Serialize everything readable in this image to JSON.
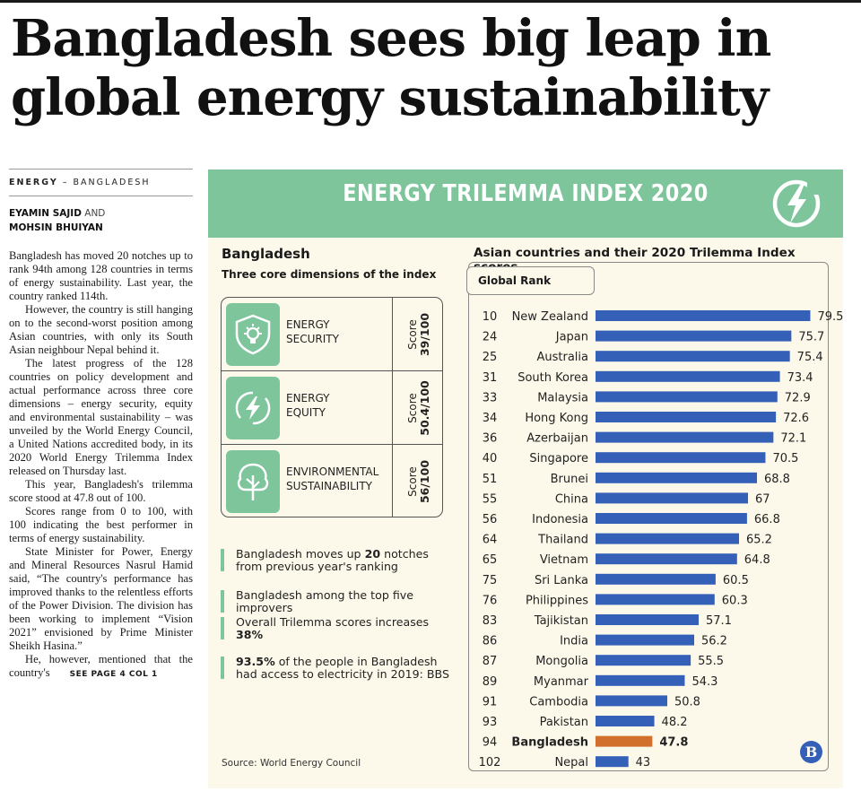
{
  "headline": {
    "line1": "Bangladesh sees big leap in",
    "line2": "global energy sustainability"
  },
  "article": {
    "kicker_section": "ENERGY",
    "kicker_sep": " – ",
    "kicker_region": "BANGLADESH",
    "author1": "EYAMIN SAJID",
    "and": " AND",
    "author2": "MOHSIN BHUIYAN",
    "paragraphs": [
      "Bangladesh has moved 20 notches up to rank 94th among 128 countries in terms of energy sustainability. Last year, the country ranked 114th.",
      "However, the country is still hanging on to the second-worst position among Asian countries, with only its South Asian neighbour Nepal behind it.",
      "The latest progress of the 128 countries on policy development and actual performance across three core dimensions – energy security, equity and environmental sustainability – was unveiled by the World Energy Council, a United Nations accredited body, in its 2020 World Energy Trilemma Index released on Thursday last.",
      "This year, Bangladesh's trilemma score stood at 47.8 out of 100.",
      "Scores range from 0 to 100, with 100 indicating the best performer in terms of energy sustainability.",
      "State Minister for Power, Energy and Mineral Resources Nasrul Hamid said, “The country's performance has improved thanks to the relentless efforts of the Power Division. The division has been working to implement “Vision 2021” envisioned by Prime Minister Sheikh Hasina.”",
      "He, however, mentioned that the country's"
    ],
    "see_more": "SEE PAGE 4 COL 1"
  },
  "infographic": {
    "banner_title": "ENERGY TRILEMMA INDEX 2020",
    "left_title": "Bangladesh",
    "left_subtitle": "Three core dimensions of the index",
    "dimensions": [
      {
        "label_line1": "ENERGY",
        "label_line2": "SECURITY",
        "score_label": "Score",
        "score": "39/100",
        "icon": "shield-bulb-icon"
      },
      {
        "label_line1": "ENERGY",
        "label_line2": "EQUITY",
        "score_label": "Score",
        "score": "50.4/100",
        "icon": "lightning-circle-icon"
      },
      {
        "label_line1": "ENVIRONMENTAL",
        "label_line2": "SUSTAINABILITY",
        "score_label": "Score",
        "score": "56/100",
        "icon": "tree-icon"
      }
    ],
    "facts": {
      "f1_pre": "Bangladesh moves up ",
      "f1_bold": "20",
      "f1_post": " notches from previous year's ranking",
      "f2": "Bangladesh among the top five improvers",
      "f3_text": "Overall Trilemma scores increases",
      "f3_bold": "38%",
      "f4_bold": "93.5%",
      "f4_post": " of the people in Bangladesh had access to electricity in 2019: BBS"
    },
    "source": "Source: World Energy Council",
    "right_title": "Asian countries and their 2020 Trilemma Index scores",
    "rank_header": "Global Rank",
    "logo_letter": "B",
    "colors": {
      "accent": "#7ec59c",
      "bar": "#3560b8",
      "highlight": "#d0702c",
      "background": "#fdf9ea"
    }
  },
  "chart_data": {
    "type": "bar",
    "orientation": "horizontal",
    "title": "Asian countries and their 2020 Trilemma Index scores",
    "categories": [
      "New Zealand",
      "Japan",
      "Australia",
      "South Korea",
      "Malaysia",
      "Hong Kong",
      "Azerbaijan",
      "Singapore",
      "Brunei",
      "China",
      "Indonesia",
      "Thailand",
      "Vietnam",
      "Sri Lanka",
      "Philippines",
      "Tajikistan",
      "India",
      "Mongolia",
      "Myanmar",
      "Cambodia",
      "Pakistan",
      "Bangladesh",
      "Nepal"
    ],
    "global_rank": [
      "10",
      "24",
      "25",
      "31",
      "33",
      "34",
      "36",
      "40",
      "51",
      "55",
      "56",
      "64",
      "65",
      "75",
      "76",
      "83",
      "86",
      "87",
      "89",
      "91",
      "93",
      "94",
      "102"
    ],
    "values": [
      79.5,
      75.7,
      75.4,
      73.4,
      72.9,
      72.6,
      72.1,
      70.5,
      68.8,
      67,
      66.8,
      65.2,
      64.8,
      60.5,
      60.3,
      57.1,
      56.2,
      55.5,
      54.3,
      50.8,
      48.2,
      47.8,
      43
    ],
    "highlight": "Bangladesh",
    "xlim": [
      40,
      80
    ],
    "grid": false
  }
}
